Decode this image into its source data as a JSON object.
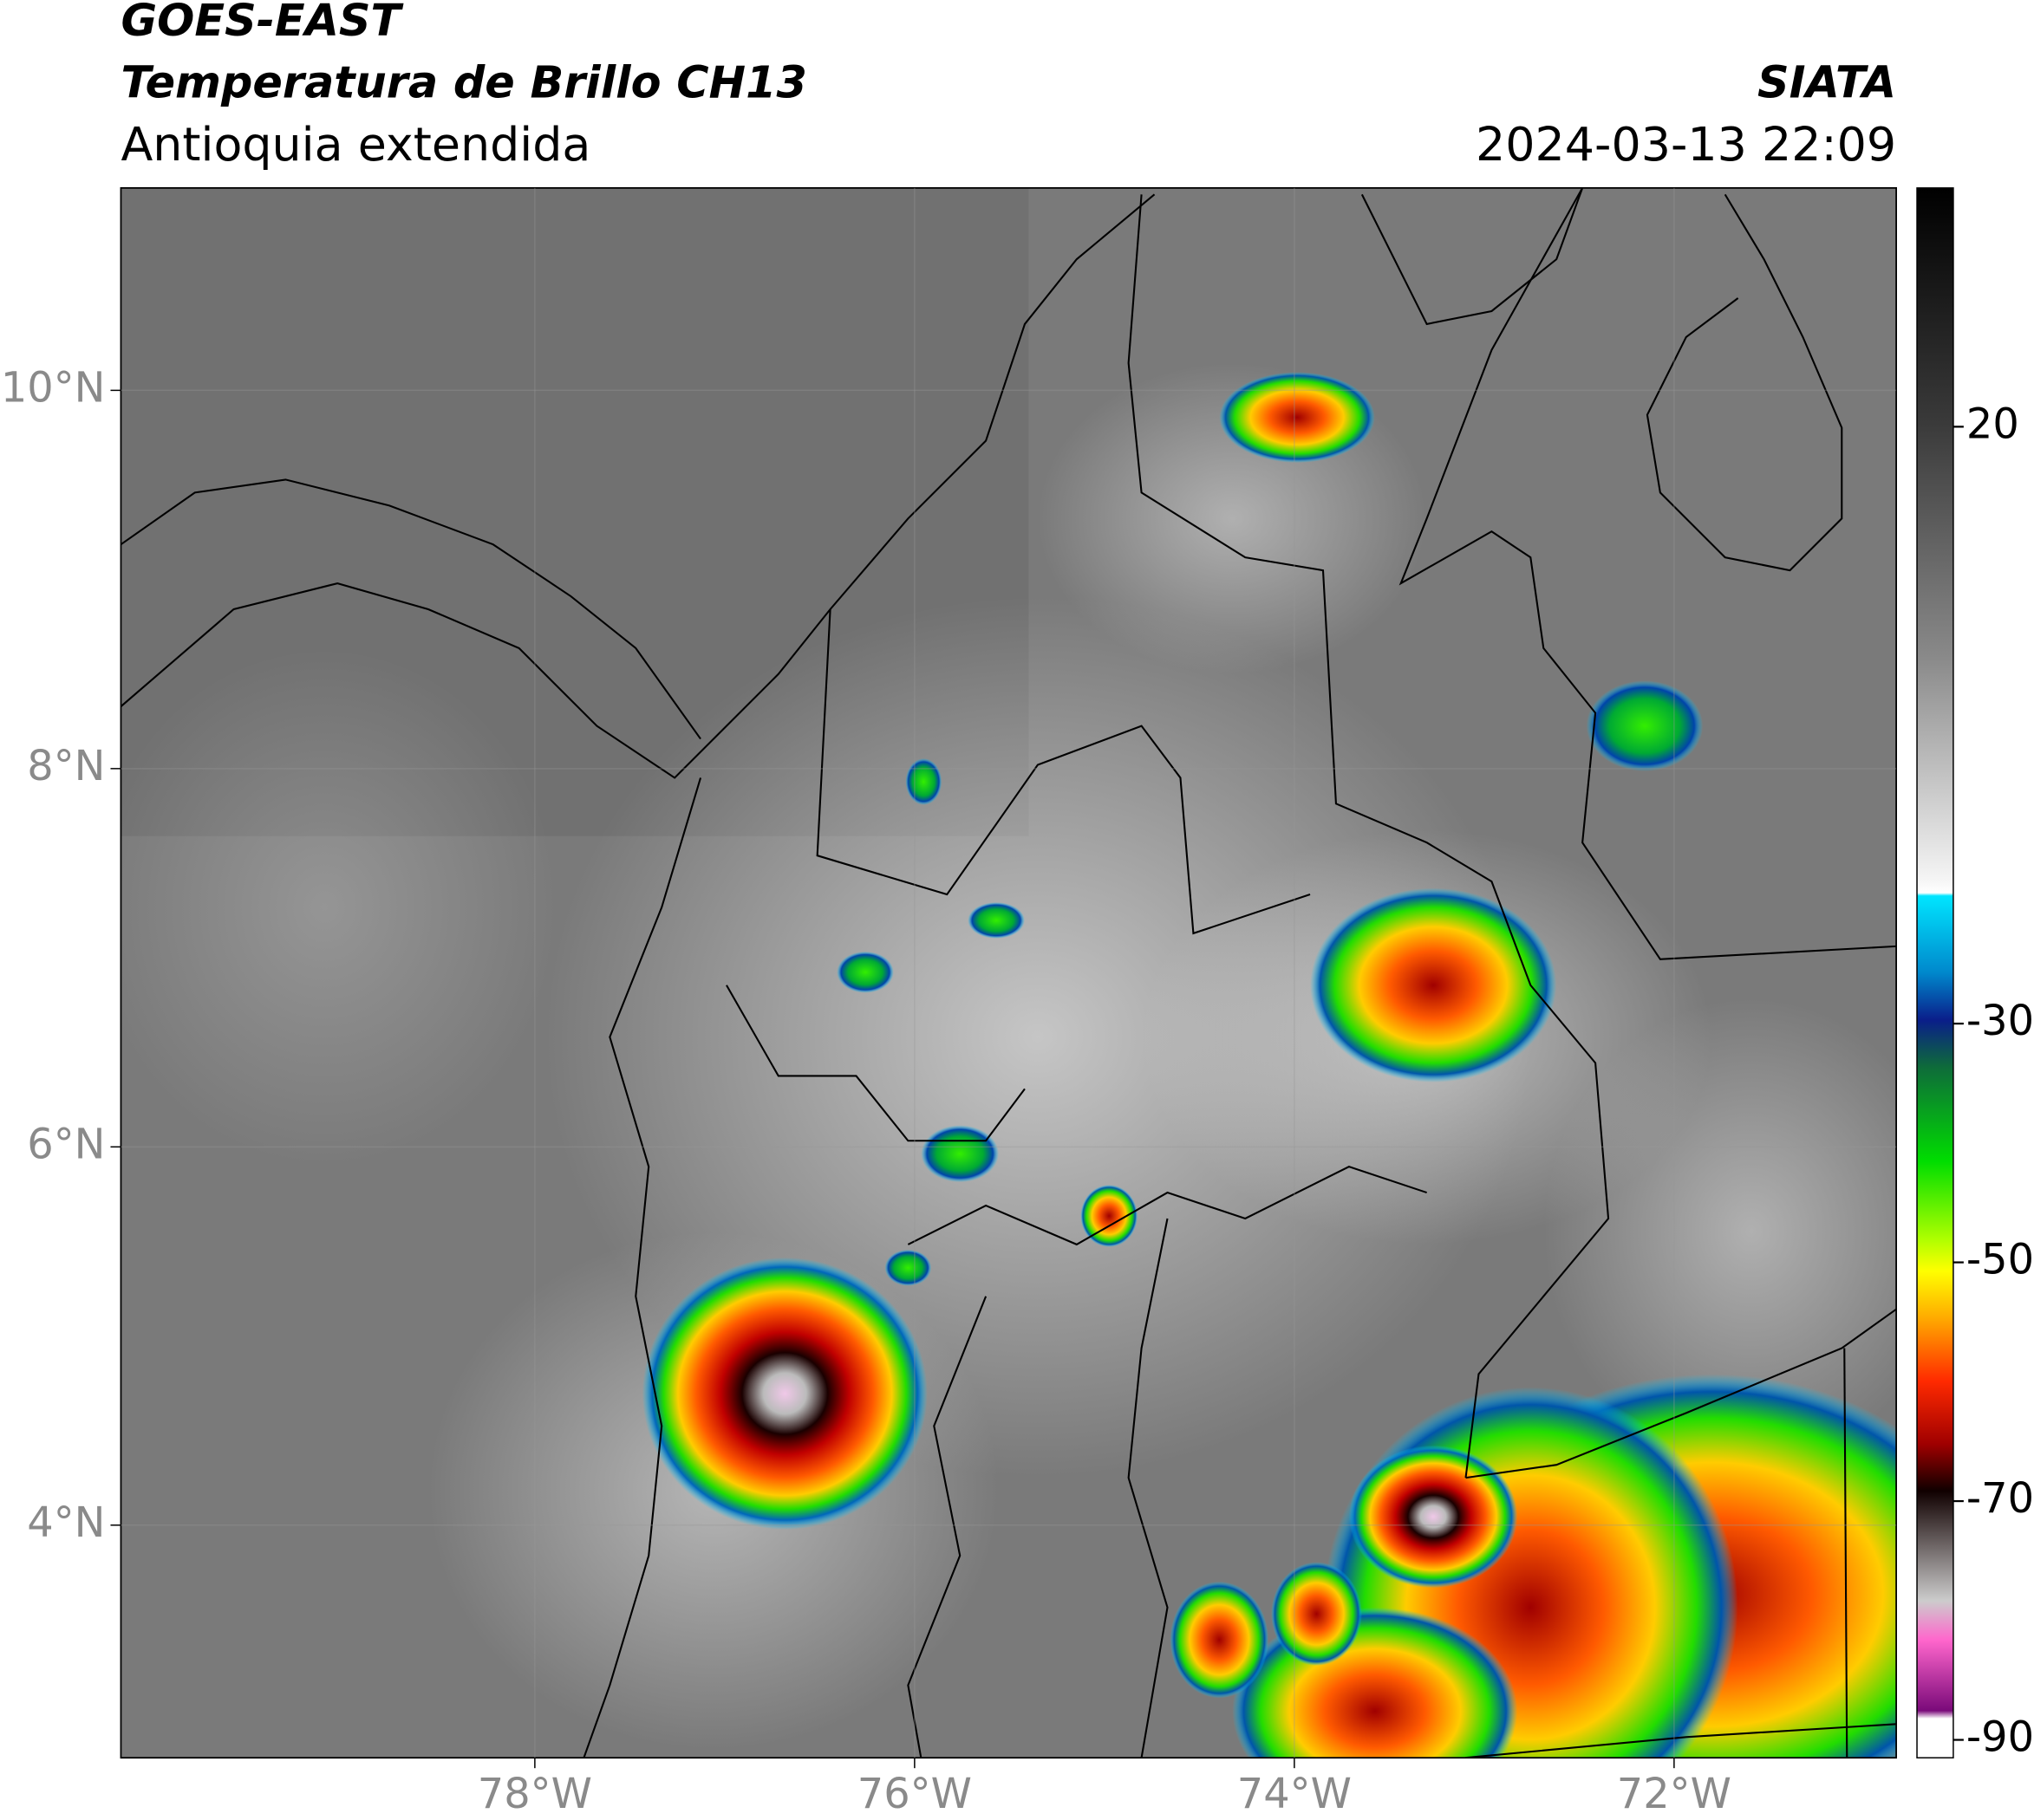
{
  "header": {
    "source": "GOES-EAST",
    "product": "Temperatura de Brillo CH13",
    "region": "Antioquia extendida",
    "agency": "SIATA",
    "datetime": "2024-03-13 22:09"
  },
  "map": {
    "xlim": [
      -80.18,
      -70.83
    ],
    "ylim": [
      2.77,
      11.07
    ],
    "xticks": [
      {
        "value": -78,
        "label": "78°W"
      },
      {
        "value": -76,
        "label": "76°W"
      },
      {
        "value": -74,
        "label": "74°W"
      },
      {
        "value": -72,
        "label": "72°W"
      }
    ],
    "yticks": [
      {
        "value": 10,
        "label": "10°N"
      },
      {
        "value": 8,
        "label": "8°N"
      },
      {
        "value": 6,
        "label": "6°N"
      },
      {
        "value": 4,
        "label": "4°N"
      }
    ],
    "grid": true
  },
  "colorbar": {
    "lim": [
      -91.5,
      40
    ],
    "ticks": [
      20,
      -30,
      -50,
      -70,
      -90
    ]
  }
}
